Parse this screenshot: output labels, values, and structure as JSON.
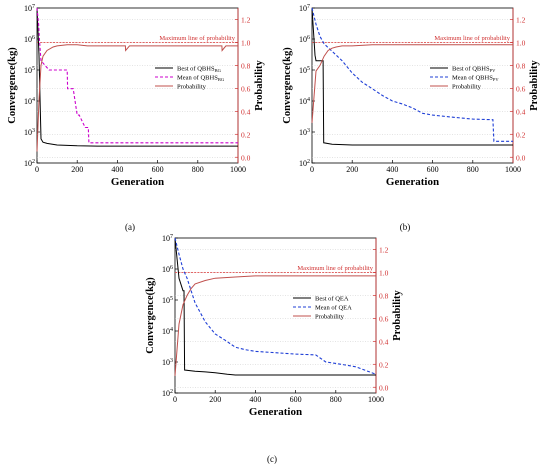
{
  "chart_data": [
    {
      "panel_label": "(a)",
      "type": "line",
      "xlabel": "Generation",
      "ylabel_left": "Convergence(kg)",
      "ylabel_right": "Probability",
      "x_ticks": [
        "0",
        "200",
        "400",
        "600",
        "800",
        "1000"
      ],
      "y_left_ticks": [
        "10^2",
        "10^3",
        "10^4",
        "10^5",
        "10^6",
        "10^7"
      ],
      "y_right_ticks": [
        "0.0",
        "0.2",
        "0.4",
        "0.6",
        "0.8",
        "1.0",
        "1.2"
      ],
      "xlim": [
        0,
        1000
      ],
      "ylim_left_log10": [
        2,
        7
      ],
      "ylim_right": [
        -0.05,
        1.3
      ],
      "reference_line": {
        "label": "Maximum line of probability",
        "y": 1.0
      },
      "legend": [
        {
          "name": "Best of QBHS",
          "sub": "BG",
          "color": "#000000",
          "style": "solid"
        },
        {
          "name": "Mean of QBHS",
          "sub": "BG",
          "color": "#cc00cc",
          "style": "dashed"
        },
        {
          "name": "Probability",
          "sub": "",
          "color": "#c0504d",
          "style": "solid"
        }
      ],
      "series": [
        {
          "name": "Best of QBHS_BG",
          "axis": "left",
          "x": [
            0,
            10,
            20,
            30,
            50,
            100,
            200,
            300,
            500,
            700,
            1000
          ],
          "y": [
            10000000,
            300000,
            600,
            470,
            430,
            380,
            360,
            350,
            350,
            350,
            350
          ]
        },
        {
          "name": "Mean of QBHS_BG",
          "axis": "left",
          "x": [
            0,
            8,
            12,
            20,
            60,
            150,
            152,
            180,
            200,
            210,
            240,
            255,
            258,
            1000
          ],
          "y": [
            10000000,
            3000000,
            1000000,
            200000,
            100000,
            100000,
            25000,
            25000,
            3500,
            3500,
            1400,
            1400,
            450,
            450
          ]
        },
        {
          "name": "Probability",
          "axis": "right",
          "x": [
            0,
            10,
            20,
            30,
            50,
            80,
            100,
            150,
            200,
            250,
            300,
            400,
            440,
            441,
            460,
            480,
            500,
            520,
            600,
            700,
            800,
            900,
            920,
            921,
            940,
            960,
            1000
          ],
          "y": [
            0.05,
            0.5,
            0.8,
            0.88,
            0.93,
            0.96,
            0.97,
            0.98,
            0.98,
            0.97,
            0.97,
            0.97,
            0.97,
            0.93,
            0.97,
            0.97,
            0.97,
            0.97,
            0.97,
            0.97,
            0.97,
            0.97,
            0.97,
            0.93,
            0.97,
            0.97,
            0.97
          ]
        }
      ]
    },
    {
      "panel_label": "(b)",
      "type": "line",
      "xlabel": "Generation",
      "ylabel_left": "Convergence(kg)",
      "ylabel_right": "Probability",
      "x_ticks": [
        "0",
        "200",
        "400",
        "600",
        "800",
        "1000"
      ],
      "y_left_ticks": [
        "10^2",
        "10^3",
        "10^4",
        "10^5",
        "10^6",
        "10^7"
      ],
      "y_right_ticks": [
        "0.0",
        "0.2",
        "0.4",
        "0.6",
        "0.8",
        "1.0",
        "1.2"
      ],
      "xlim": [
        0,
        1000
      ],
      "ylim_left_log10": [
        2,
        7
      ],
      "ylim_right": [
        -0.05,
        1.3
      ],
      "reference_line": {
        "label": "Maximum line of probability",
        "y": 1.0
      },
      "legend": [
        {
          "name": "Best of QBHS",
          "sub": "PV",
          "color": "#000000",
          "style": "solid"
        },
        {
          "name": "Mean of QBHS",
          "sub": "PV",
          "color": "#1f3fd6",
          "style": "dashed"
        },
        {
          "name": "Probability",
          "sub": "",
          "color": "#c0504d",
          "style": "solid"
        }
      ],
      "series": [
        {
          "name": "Best of QBHS_PV",
          "axis": "left",
          "x": [
            0,
            15,
            20,
            40,
            41,
            55,
            58,
            100,
            200,
            400,
            700,
            1000
          ],
          "y": [
            10000000,
            300000,
            200000,
            200000,
            200000,
            200000,
            450,
            400,
            380,
            380,
            380,
            380
          ]
        },
        {
          "name": "Mean of QBHS_PV",
          "axis": "left",
          "x": [
            0,
            20,
            40,
            60,
            100,
            150,
            200,
            250,
            300,
            350,
            400,
            450,
            500,
            550,
            600,
            700,
            800,
            900,
            905,
            1000
          ],
          "y": [
            10000000,
            3000000,
            1200000,
            700000,
            400000,
            200000,
            80000,
            40000,
            25000,
            15000,
            10000,
            8000,
            6000,
            4000,
            3500,
            3000,
            2600,
            2500,
            500,
            500
          ]
        },
        {
          "name": "Probability",
          "axis": "right",
          "x": [
            0,
            20,
            40,
            60,
            80,
            100,
            120,
            150,
            200,
            300,
            400,
            500,
            700,
            1000
          ],
          "y": [
            0.3,
            0.75,
            0.8,
            0.88,
            0.93,
            0.95,
            0.96,
            0.97,
            0.97,
            0.98,
            0.98,
            0.98,
            0.98,
            0.98
          ]
        }
      ]
    },
    {
      "panel_label": "(c)",
      "type": "line",
      "xlabel": "Generation",
      "ylabel_left": "Convergence(kg)",
      "ylabel_right": "Probability",
      "x_ticks": [
        "0",
        "200",
        "400",
        "600",
        "800",
        "1000"
      ],
      "y_left_ticks": [
        "10^2",
        "10^3",
        "10^4",
        "10^5",
        "10^6",
        "10^7"
      ],
      "y_right_ticks": [
        "0.0",
        "0.2",
        "0.4",
        "0.6",
        "0.8",
        "1.0",
        "1.2"
      ],
      "xlim": [
        0,
        1000
      ],
      "ylim_left_log10": [
        2,
        7
      ],
      "ylim_right": [
        -0.05,
        1.3
      ],
      "reference_line": {
        "label": "Maximum line of probability",
        "y": 1.0
      },
      "legend": [
        {
          "name": "Best of QEA",
          "sub": "",
          "color": "#000000",
          "style": "solid"
        },
        {
          "name": "Mean of QEA",
          "sub": "",
          "color": "#1f3fd6",
          "style": "dashed"
        },
        {
          "name": "Probability",
          "sub": "",
          "color": "#c0504d",
          "style": "solid"
        }
      ],
      "series": [
        {
          "name": "Best of QEA",
          "axis": "left",
          "x": [
            0,
            20,
            40,
            45,
            48,
            100,
            150,
            200,
            260,
            300,
            500,
            800,
            1000
          ],
          "y": [
            10000000,
            500000,
            200000,
            200000,
            550,
            500,
            480,
            450,
            400,
            380,
            380,
            380,
            380
          ]
        },
        {
          "name": "Mean of QEA",
          "axis": "left",
          "x": [
            0,
            20,
            40,
            60,
            80,
            100,
            150,
            200,
            250,
            300,
            350,
            400,
            500,
            600,
            700,
            750,
            800,
            900,
            1000
          ],
          "y": [
            10000000,
            3000000,
            1000000,
            500000,
            200000,
            80000,
            20000,
            8000,
            5000,
            3000,
            2500,
            2200,
            2000,
            1800,
            1700,
            1000,
            900,
            700,
            400
          ]
        },
        {
          "name": "Probability",
          "axis": "right",
          "x": [
            0,
            20,
            40,
            60,
            80,
            100,
            150,
            200,
            300,
            400,
            500,
            600,
            800,
            1000
          ],
          "y": [
            0.1,
            0.55,
            0.72,
            0.8,
            0.86,
            0.9,
            0.93,
            0.95,
            0.96,
            0.97,
            0.97,
            0.97,
            0.97,
            0.97
          ]
        }
      ]
    }
  ]
}
